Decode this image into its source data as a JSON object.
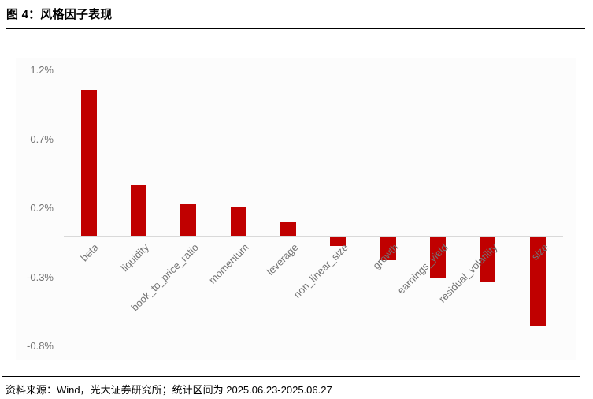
{
  "header": {
    "title": "图 4：风格因子表现"
  },
  "footer": {
    "source": "资料来源：Wind，光大证券研究所；统计区间为 2025.06.23-2025.06.27"
  },
  "chart_data": {
    "type": "bar",
    "title": "风格因子表现",
    "categories": [
      "beta",
      "liquidity",
      "book_to_price_ratio",
      "momentum",
      "leverage",
      "non_linear_size",
      "growth",
      "earnings_yield",
      "residual_volatility",
      "size"
    ],
    "values": [
      1.06,
      0.37,
      0.23,
      0.21,
      0.1,
      -0.07,
      -0.17,
      -0.3,
      -0.33,
      -0.65
    ],
    "unit": "%",
    "xlabel": "",
    "ylabel": "",
    "ylim": [
      -0.8,
      1.2
    ],
    "y_ticks": [
      1.2,
      0.7,
      0.2,
      -0.3,
      -0.8
    ],
    "y_tick_labels": [
      "1.2%",
      "0.7%",
      "0.2%",
      "-0.3%",
      "-0.8%"
    ],
    "grid": false,
    "legend_position": "none",
    "bar_color": "#C00000",
    "axis_line_color": "#D9D9D9",
    "tick_label_color": "#737373"
  }
}
